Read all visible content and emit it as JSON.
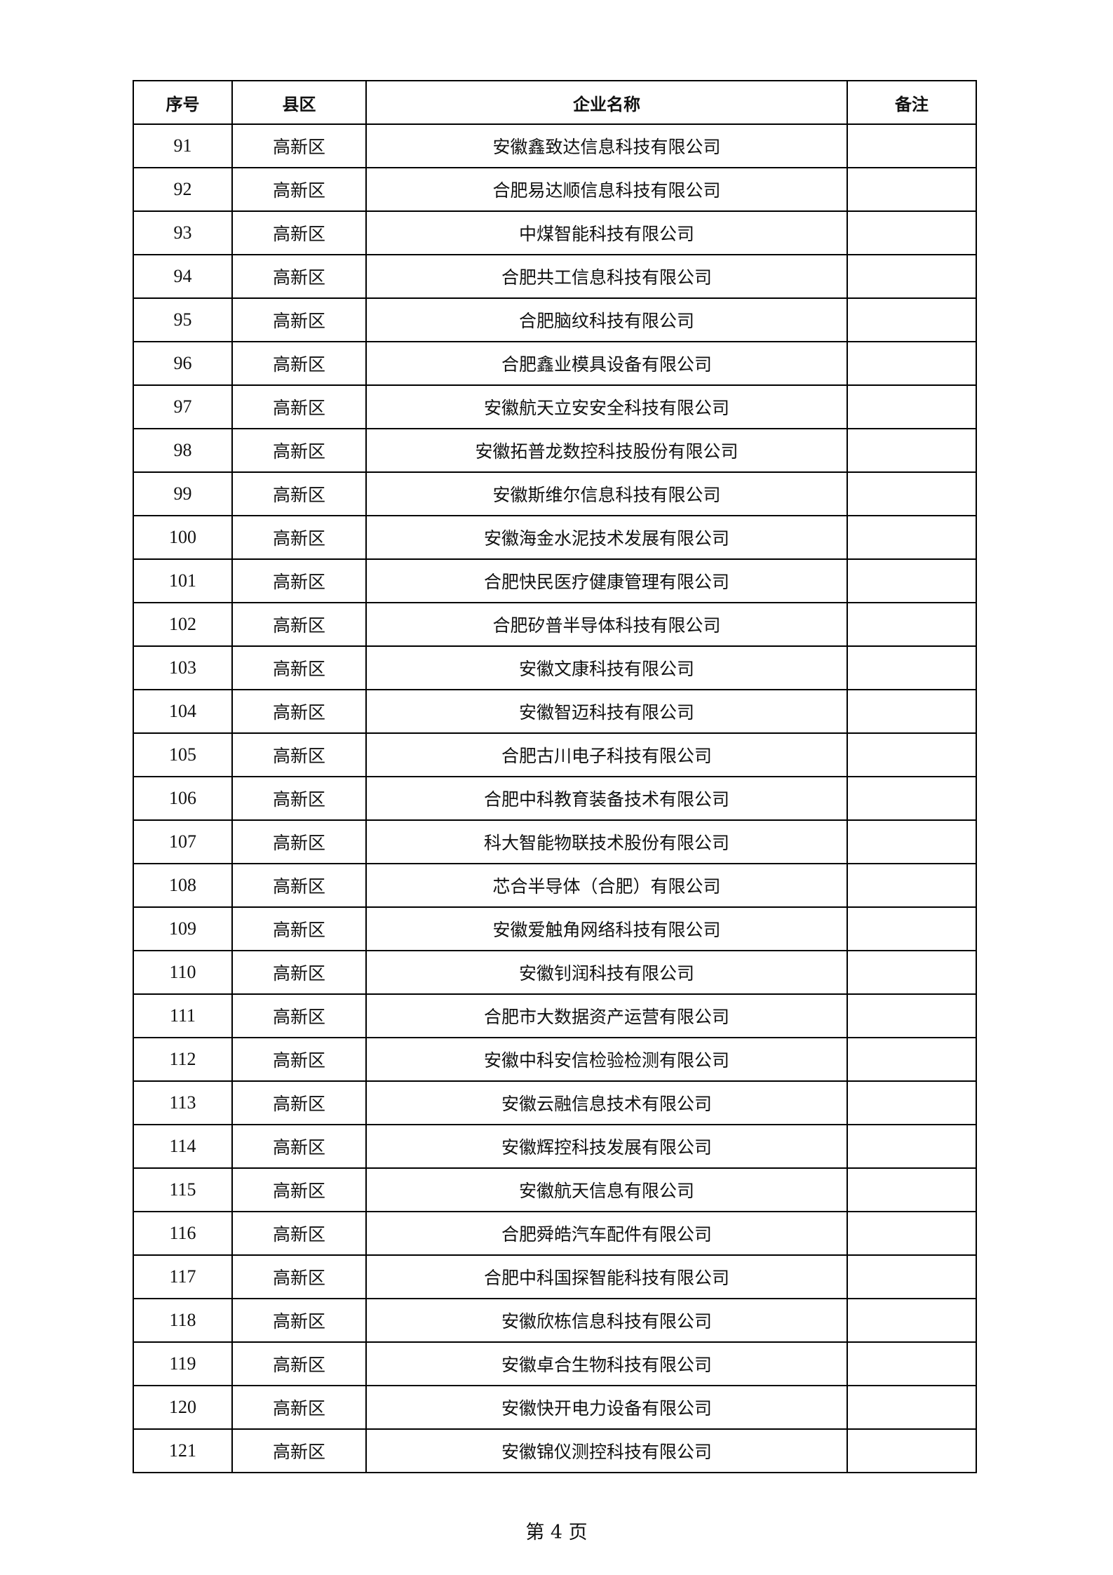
{
  "table": {
    "headers": [
      "序号",
      "县区",
      "企业名称",
      "备注"
    ],
    "rows": [
      [
        "91",
        "高新区",
        "安徽鑫致达信息科技有限公司",
        ""
      ],
      [
        "92",
        "高新区",
        "合肥易达顺信息科技有限公司",
        ""
      ],
      [
        "93",
        "高新区",
        "中煤智能科技有限公司",
        ""
      ],
      [
        "94",
        "高新区",
        "合肥共工信息科技有限公司",
        ""
      ],
      [
        "95",
        "高新区",
        "合肥脑纹科技有限公司",
        ""
      ],
      [
        "96",
        "高新区",
        "合肥鑫业模具设备有限公司",
        ""
      ],
      [
        "97",
        "高新区",
        "安徽航天立安安全科技有限公司",
        ""
      ],
      [
        "98",
        "高新区",
        "安徽拓普龙数控科技股份有限公司",
        ""
      ],
      [
        "99",
        "高新区",
        "安徽斯维尔信息科技有限公司",
        ""
      ],
      [
        "100",
        "高新区",
        "安徽海金水泥技术发展有限公司",
        ""
      ],
      [
        "101",
        "高新区",
        "合肥快民医疗健康管理有限公司",
        ""
      ],
      [
        "102",
        "高新区",
        "合肥矽普半导体科技有限公司",
        ""
      ],
      [
        "103",
        "高新区",
        "安徽文康科技有限公司",
        ""
      ],
      [
        "104",
        "高新区",
        "安徽智迈科技有限公司",
        ""
      ],
      [
        "105",
        "高新区",
        "合肥古川电子科技有限公司",
        ""
      ],
      [
        "106",
        "高新区",
        "合肥中科教育装备技术有限公司",
        ""
      ],
      [
        "107",
        "高新区",
        "科大智能物联技术股份有限公司",
        ""
      ],
      [
        "108",
        "高新区",
        "芯合半导体（合肥）有限公司",
        ""
      ],
      [
        "109",
        "高新区",
        "安徽爱触角网络科技有限公司",
        ""
      ],
      [
        "110",
        "高新区",
        "安徽钊润科技有限公司",
        ""
      ],
      [
        "111",
        "高新区",
        "合肥市大数据资产运营有限公司",
        ""
      ],
      [
        "112",
        "高新区",
        "安徽中科安信检验检测有限公司",
        ""
      ],
      [
        "113",
        "高新区",
        "安徽云融信息技术有限公司",
        ""
      ],
      [
        "114",
        "高新区",
        "安徽辉控科技发展有限公司",
        ""
      ],
      [
        "115",
        "高新区",
        "安徽航天信息有限公司",
        ""
      ],
      [
        "116",
        "高新区",
        "合肥舜皓汽车配件有限公司",
        ""
      ],
      [
        "117",
        "高新区",
        "合肥中科国探智能科技有限公司",
        ""
      ],
      [
        "118",
        "高新区",
        "安徽欣栋信息科技有限公司",
        ""
      ],
      [
        "119",
        "高新区",
        "安徽卓合生物科技有限公司",
        ""
      ],
      [
        "120",
        "高新区",
        "安徽快开电力设备有限公司",
        ""
      ],
      [
        "121",
        "高新区",
        "安徽锦仪测控科技有限公司",
        ""
      ]
    ]
  },
  "footer": {
    "page_label": "第 4 页"
  }
}
